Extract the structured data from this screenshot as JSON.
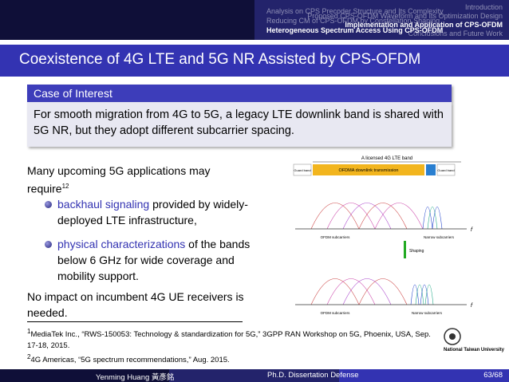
{
  "header": {
    "left_nav": [
      "Introduction",
      "Proposed CPS-OFDM Waveform and Its Optimization Design",
      "Implementation and Application of CPS-OFDM",
      "Conclusions and Future Work"
    ],
    "right_nav": [
      "Analysis on CPS Precoder Structure and Its Complexity",
      "Reducing CM of CPS-OFDM by Constellation Shaping",
      "Heterogeneous Spectrum Access Using CPS-OFDM"
    ]
  },
  "title": "Coexistence of 4G LTE and 5G NR Assisted by CPS-OFDM",
  "block": {
    "title": "Case of Interest",
    "body": "For smooth migration from 4G to 5G, a legacy LTE downlink band is shared with 5G NR, but they adopt different subcarrier spacing."
  },
  "body": {
    "intro": "Many upcoming 5G applications may require",
    "footnote_marks": [
      "1",
      "2"
    ],
    "bullets": [
      {
        "highlight": "backhaul signaling",
        "text": " provided by widely-deployed LTE infrastructure,"
      },
      {
        "highlight": "physical characterizations",
        "text": " of the bands below 6 GHz for wide coverage and mobility support."
      }
    ],
    "conclusion": "No impact on incumbent 4G UE receivers is needed."
  },
  "figure": {
    "band_label": "A licensed 4G LTE band",
    "guard_band": "Guard band",
    "transmission": "OFDMA downlink transmission",
    "ofdm_subcarriers": "OFDM subcarriers",
    "narrow_subcarriers": "Narrow subcarriers",
    "axis": "f",
    "shaping": "Shaping"
  },
  "footnotes": [
    {
      "mark": "1",
      "text": "MediaTek Inc., “RWS-150053: Technology & standardization for 5G,” 3GPP RAN Workshop on 5G, Phoenix, USA, Sep. 17-18, 2015."
    },
    {
      "mark": "2",
      "text": "4G Americas, “5G spectrum recommendations,” Aug. 2015."
    }
  ],
  "logo": {
    "text": "National Taiwan University"
  },
  "footer": {
    "author": "Yenming Huang 黃彥銘",
    "event": "Ph.D. Dissertation Defense",
    "page": "63/68"
  }
}
